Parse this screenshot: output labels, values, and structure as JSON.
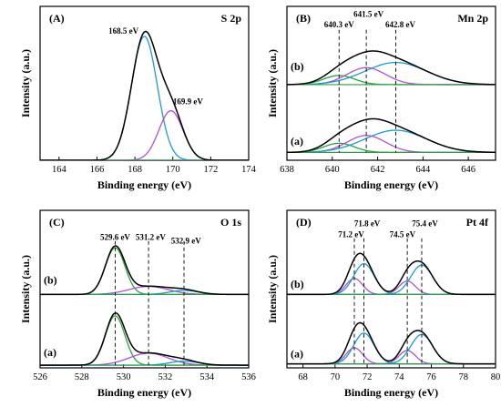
{
  "chart_data": [
    {
      "type": "line",
      "panel_tag": "(A)",
      "element_label": "S 2p",
      "xlabel": "Binding energy (eV)",
      "ylabel": "Intensity (a.u.)",
      "xlim": [
        163,
        174
      ],
      "x_reversed": false,
      "xticks": [
        164,
        166,
        168,
        170,
        172,
        174
      ],
      "ylim": [
        0,
        1.18
      ],
      "baselines": [
        0.0
      ],
      "trace_labels": [],
      "components": [
        {
          "color": "#1a9bd7",
          "traces": [
            {
              "baseline": 0.0,
              "center": 168.5,
              "amp": 0.95,
              "fwhm": 1.6
            }
          ]
        },
        {
          "color": "#b24fd6",
          "traces": [
            {
              "baseline": 0.0,
              "center": 169.9,
              "amp": 0.38,
              "fwhm": 1.5
            }
          ]
        }
      ],
      "envelope_color": "#000000",
      "dashed_lines": [],
      "peak_labels": [
        {
          "text": "168.5 eV",
          "x": 167.4,
          "y": 0.97
        },
        {
          "text": "169.9 eV",
          "x": 170.8,
          "y": 0.43
        }
      ]
    },
    {
      "type": "line",
      "panel_tag": "(B)",
      "element_label": "Mn 2p",
      "xlabel": "Binding energy (eV)",
      "ylabel": "Intensity (a.u.)",
      "xlim": [
        638,
        647.2
      ],
      "x_reversed": false,
      "xticks": [
        638,
        640,
        642,
        644,
        646
      ],
      "ylim": [
        0,
        1.18
      ],
      "baselines": [
        0.06,
        0.58
      ],
      "trace_labels": [
        {
          "text": "(a)",
          "y": 0.12
        },
        {
          "text": "(b)",
          "y": 0.69
        }
      ],
      "components": [
        {
          "color": "#2ea043",
          "traces": [
            {
              "baseline": 0.06,
              "center": 640.3,
              "amp": 0.07,
              "fwhm": 1.6
            },
            {
              "baseline": 0.58,
              "center": 640.3,
              "amp": 0.07,
              "fwhm": 1.6
            }
          ]
        },
        {
          "color": "#b24fd6",
          "traces": [
            {
              "baseline": 0.06,
              "center": 641.5,
              "amp": 0.13,
              "fwhm": 2.0
            },
            {
              "baseline": 0.58,
              "center": 641.5,
              "amp": 0.13,
              "fwhm": 2.0
            }
          ]
        },
        {
          "color": "#1a9bd7",
          "traces": [
            {
              "baseline": 0.06,
              "center": 642.8,
              "amp": 0.17,
              "fwhm": 3.2
            },
            {
              "baseline": 0.58,
              "center": 642.8,
              "amp": 0.17,
              "fwhm": 3.2
            }
          ]
        }
      ],
      "envelope_color": "#000000",
      "dashed_lines": [
        640.3,
        641.5,
        642.8
      ],
      "dashed_range": [
        0.06,
        1.0
      ],
      "peak_labels": [
        {
          "text": "640.3 eV",
          "x": 640.3,
          "y": 1.02
        },
        {
          "text": "641.5 eV",
          "x": 641.6,
          "y": 1.1
        },
        {
          "text": "642.8 eV",
          "x": 643.0,
          "y": 1.02
        }
      ]
    },
    {
      "type": "line",
      "panel_tag": "(C)",
      "element_label": "O 1s",
      "xlabel": "Binding energy (eV)",
      "ylabel": "Intensity (a.u.)",
      "xlim": [
        526,
        536
      ],
      "x_reversed": false,
      "xticks": [
        526,
        528,
        530,
        532,
        534,
        536
      ],
      "ylim": [
        0,
        1.18
      ],
      "baselines": [
        0.02,
        0.55
      ],
      "trace_labels": [
        {
          "text": "(a)",
          "y": 0.09
        },
        {
          "text": "(b)",
          "y": 0.63
        }
      ],
      "components": [
        {
          "color": "#2ea043",
          "traces": [
            {
              "baseline": 0.02,
              "center": 529.6,
              "amp": 0.37,
              "fwhm": 1.1
            },
            {
              "baseline": 0.55,
              "center": 529.6,
              "amp": 0.35,
              "fwhm": 1.1
            }
          ]
        },
        {
          "color": "#b24fd6",
          "traces": [
            {
              "baseline": 0.02,
              "center": 531.2,
              "amp": 0.09,
              "fwhm": 2.2
            },
            {
              "baseline": 0.55,
              "center": 531.2,
              "amp": 0.06,
              "fwhm": 2.2
            }
          ]
        },
        {
          "color": "#1a9bd7",
          "traces": [
            {
              "baseline": 0.02,
              "center": 532.9,
              "amp": 0.03,
              "fwhm": 1.6
            },
            {
              "baseline": 0.55,
              "center": 532.9,
              "amp": 0.03,
              "fwhm": 1.6
            }
          ]
        }
      ],
      "envelope_color": "#000000",
      "dashed_lines": [
        529.6,
        531.2,
        532.9
      ],
      "dashed_range": [
        0.02,
        0.95
      ],
      "peak_labels": [
        {
          "text": "529.6 eV",
          "x": 529.6,
          "y": 0.96
        },
        {
          "text": "531.2 eV",
          "x": 531.3,
          "y": 0.96
        },
        {
          "text": "532.9 eV",
          "x": 533.0,
          "y": 0.93
        }
      ]
    },
    {
      "type": "line",
      "panel_tag": "(D)",
      "element_label": "Pt 4f",
      "xlabel": "Binding energy (eV)",
      "ylabel": "Intensity (a.u.)",
      "xlim": [
        67,
        80
      ],
      "x_reversed": false,
      "xticks": [
        68,
        70,
        72,
        74,
        76,
        78,
        80
      ],
      "ylim": [
        0,
        1.18
      ],
      "baselines": [
        0.03,
        0.55
      ],
      "trace_labels": [
        {
          "text": "(a)",
          "y": 0.08
        },
        {
          "text": "(b)",
          "y": 0.6
        }
      ],
      "components": [
        {
          "color": "#b24fd6",
          "traces": [
            {
              "baseline": 0.03,
              "center": 71.2,
              "amp": 0.12,
              "fwhm": 1.2
            },
            {
              "baseline": 0.55,
              "center": 71.2,
              "amp": 0.12,
              "fwhm": 1.2
            },
            {
              "baseline": 0.03,
              "center": 74.5,
              "amp": 0.1,
              "fwhm": 1.2
            },
            {
              "baseline": 0.55,
              "center": 74.5,
              "amp": 0.1,
              "fwhm": 1.2
            }
          ]
        },
        {
          "color": "#1a9bd7",
          "traces": [
            {
              "baseline": 0.03,
              "center": 71.8,
              "amp": 0.23,
              "fwhm": 1.5
            },
            {
              "baseline": 0.55,
              "center": 71.8,
              "amp": 0.23,
              "fwhm": 1.5
            },
            {
              "baseline": 0.03,
              "center": 75.4,
              "amp": 0.22,
              "fwhm": 1.6
            },
            {
              "baseline": 0.55,
              "center": 75.4,
              "amp": 0.22,
              "fwhm": 1.6
            }
          ]
        }
      ],
      "envelope_color": "#000000",
      "dashed_lines": [
        71.2,
        71.8,
        74.5,
        75.4
      ],
      "dashed_range": [
        0.03,
        0.97
      ],
      "peak_labels": [
        {
          "text": "71.2 eV",
          "x": 71.0,
          "y": 0.98
        },
        {
          "text": "71.8 eV",
          "x": 72.0,
          "y": 1.06
        },
        {
          "text": "74.5 eV",
          "x": 74.2,
          "y": 0.98
        },
        {
          "text": "75.4 eV",
          "x": 75.6,
          "y": 1.06
        }
      ]
    }
  ]
}
